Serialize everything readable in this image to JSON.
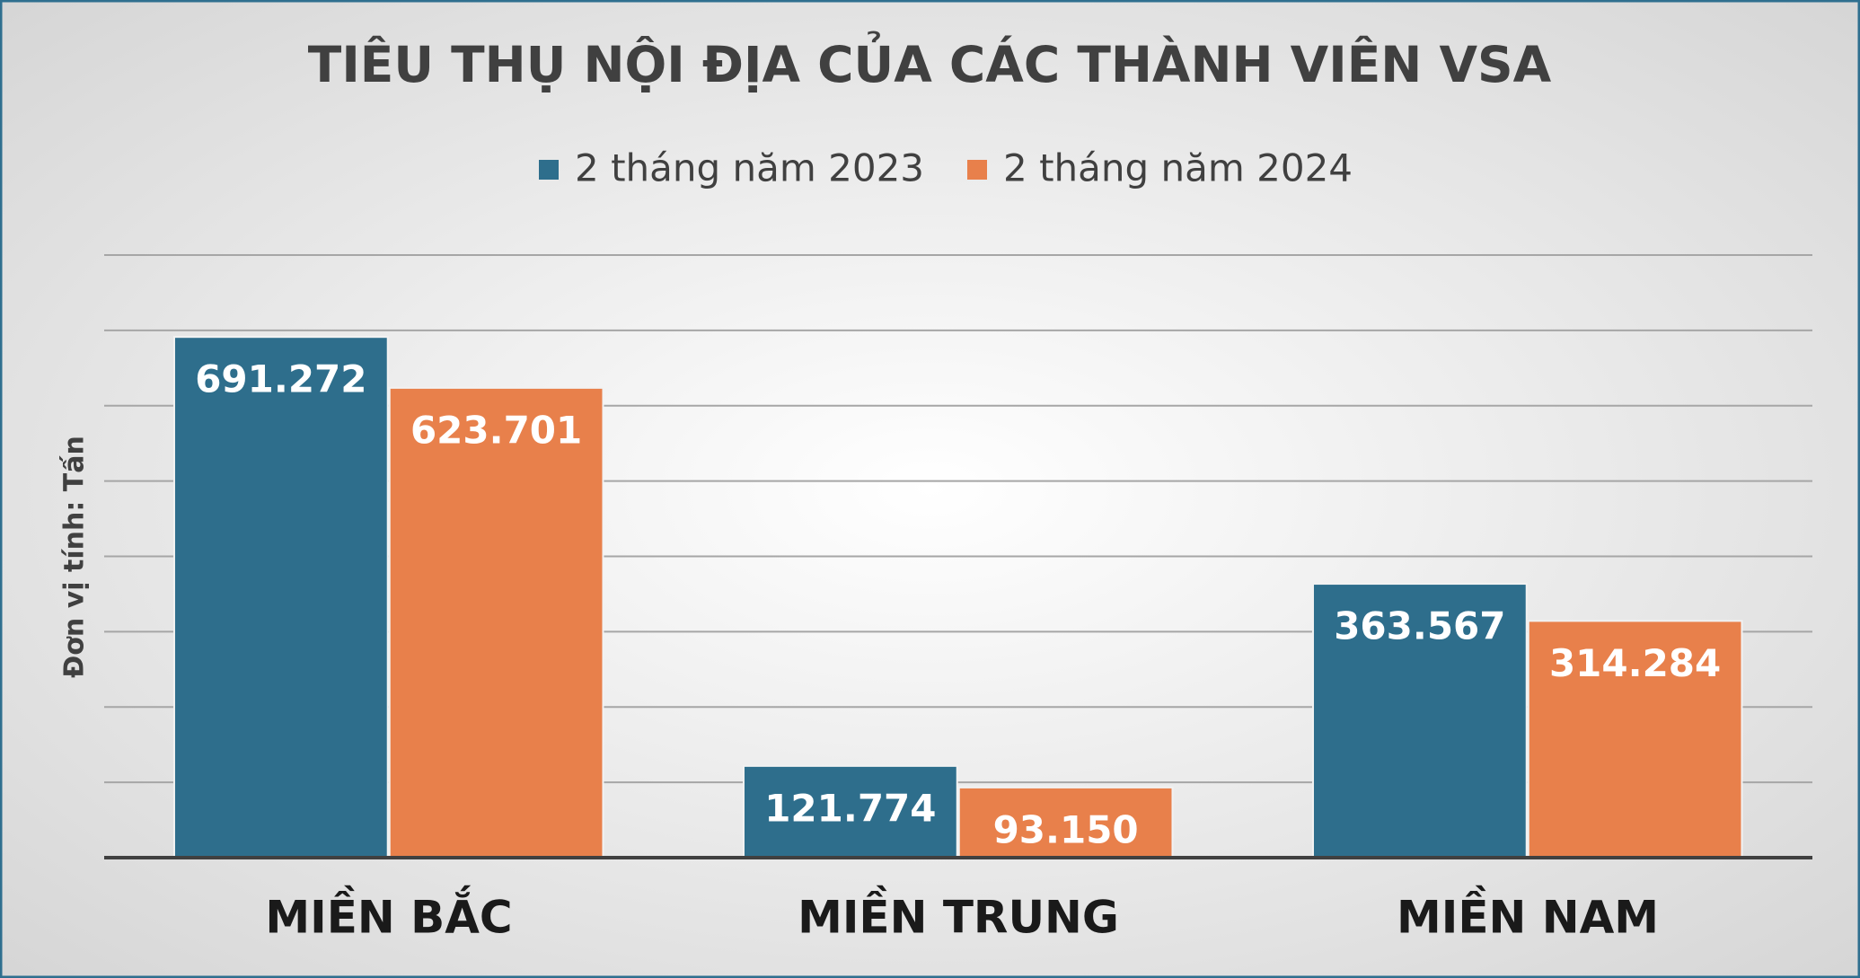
{
  "chart_data": {
    "type": "bar",
    "title": "TIÊU THỤ NỘI ĐỊA CỦA CÁC THÀNH VIÊN VSA",
    "y_label": "Đơn vị tính: Tấn",
    "categories": [
      "MIỀN BẮC",
      "MIỀN TRUNG",
      "MIỀN NAM"
    ],
    "series": [
      {
        "name": "2 tháng năm 2023",
        "color": "#2e6e8c",
        "values": [
          691272,
          121774,
          363567
        ],
        "value_labels": [
          "691.272",
          "121.774",
          "363.567"
        ]
      },
      {
        "name": "2 tháng năm 2024",
        "color": "#e8804b",
        "values": [
          623701,
          93150,
          314284
        ],
        "value_labels": [
          "623.701",
          "93.150",
          "314.284"
        ]
      }
    ],
    "ylim": [
      0,
      800000
    ],
    "yticks": [
      0,
      100000,
      200000,
      300000,
      400000,
      500000,
      600000,
      700000,
      800000
    ],
    "grid": true
  }
}
